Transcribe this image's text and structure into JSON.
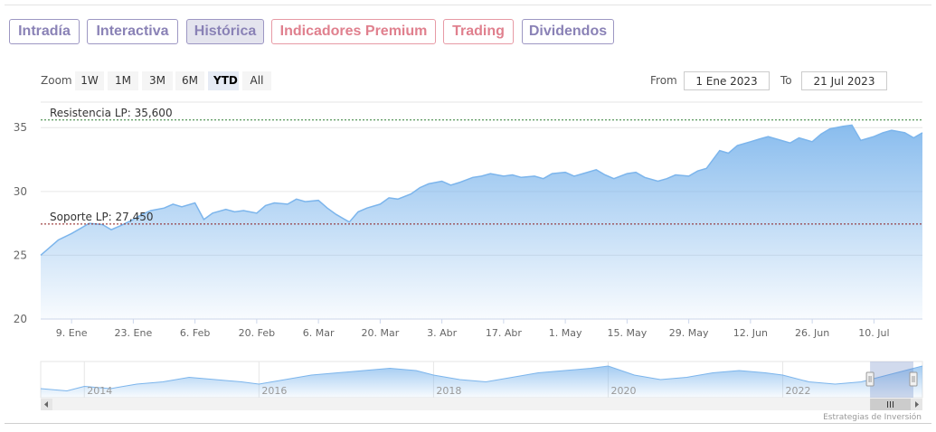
{
  "tabs": [
    {
      "label": "Intradía",
      "color": "#8a82b6",
      "active": false
    },
    {
      "label": "Interactiva",
      "color": "#8a82b6",
      "active": false
    },
    {
      "label": "Histórica",
      "color": "#8a82b6",
      "active": true
    },
    {
      "label": "Indicadores Premium",
      "color": "#e0808e",
      "active": false
    },
    {
      "label": "Trading",
      "color": "#e0808e",
      "active": false
    },
    {
      "label": "Dividendos",
      "color": "#8a82b6",
      "active": false
    }
  ],
  "zoom": {
    "label": "Zoom",
    "buttons": [
      "1W",
      "1M",
      "3M",
      "6M",
      "YTD",
      "All"
    ],
    "selected": "YTD"
  },
  "range": {
    "from_label": "From",
    "from_value": "1 Ene 2023",
    "to_label": "To",
    "to_value": "21 Jul 2023"
  },
  "credits": "Estrategias de Inversión",
  "colors": {
    "line": "#7cb5ec",
    "resistance": "#2e7d32",
    "support": "#8b1a1a"
  },
  "chart_data": {
    "type": "area",
    "ylim": [
      20,
      37
    ],
    "yticks": [
      20,
      25,
      30,
      35
    ],
    "xticks": [
      {
        "label": "9. Ene",
        "date": "2023-01-09"
      },
      {
        "label": "23. Ene",
        "date": "2023-01-23"
      },
      {
        "label": "6. Feb",
        "date": "2023-02-06"
      },
      {
        "label": "20. Feb",
        "date": "2023-02-20"
      },
      {
        "label": "6. Mar",
        "date": "2023-03-06"
      },
      {
        "label": "20. Mar",
        "date": "2023-03-20"
      },
      {
        "label": "3. Abr",
        "date": "2023-04-03"
      },
      {
        "label": "17. Abr",
        "date": "2023-04-17"
      },
      {
        "label": "1. May",
        "date": "2023-05-01"
      },
      {
        "label": "15. May",
        "date": "2023-05-15"
      },
      {
        "label": "29. May",
        "date": "2023-05-29"
      },
      {
        "label": "12. Jun",
        "date": "2023-06-12"
      },
      {
        "label": "26. Jun",
        "date": "2023-06-26"
      },
      {
        "label": "10. Jul",
        "date": "2023-07-10"
      }
    ],
    "x_range": [
      "2023-01-02",
      "2023-07-21"
    ],
    "series": [
      {
        "x": [
          "2023-01-02",
          "2023-01-04",
          "2023-01-06",
          "2023-01-09",
          "2023-01-11",
          "2023-01-13",
          "2023-01-16",
          "2023-01-18",
          "2023-01-20",
          "2023-01-23",
          "2023-01-25",
          "2023-01-27",
          "2023-01-30",
          "2023-02-01",
          "2023-02-03",
          "2023-02-06",
          "2023-02-08",
          "2023-02-10",
          "2023-02-13",
          "2023-02-15",
          "2023-02-17",
          "2023-02-20",
          "2023-02-22",
          "2023-02-24",
          "2023-02-27",
          "2023-03-01",
          "2023-03-03",
          "2023-03-06",
          "2023-03-08",
          "2023-03-10",
          "2023-03-13",
          "2023-03-15",
          "2023-03-17",
          "2023-03-20",
          "2023-03-22",
          "2023-03-24",
          "2023-03-27",
          "2023-03-29",
          "2023-03-31",
          "2023-04-03",
          "2023-04-05",
          "2023-04-07",
          "2023-04-10",
          "2023-04-12",
          "2023-04-14",
          "2023-04-17",
          "2023-04-19",
          "2023-04-21",
          "2023-04-24",
          "2023-04-26",
          "2023-04-28",
          "2023-05-01",
          "2023-05-03",
          "2023-05-05",
          "2023-05-08",
          "2023-05-10",
          "2023-05-12",
          "2023-05-15",
          "2023-05-17",
          "2023-05-19",
          "2023-05-22",
          "2023-05-24",
          "2023-05-26",
          "2023-05-29",
          "2023-05-31",
          "2023-06-02",
          "2023-06-05",
          "2023-06-07",
          "2023-06-09",
          "2023-06-12",
          "2023-06-14",
          "2023-06-16",
          "2023-06-19",
          "2023-06-21",
          "2023-06-23",
          "2023-06-26",
          "2023-06-28",
          "2023-06-30",
          "2023-07-03",
          "2023-07-05",
          "2023-07-07",
          "2023-07-10",
          "2023-07-12",
          "2023-07-14",
          "2023-07-17",
          "2023-07-19",
          "2023-07-21"
        ],
        "y": [
          25.0,
          25.6,
          26.2,
          26.7,
          27.1,
          27.5,
          27.4,
          27.0,
          27.3,
          27.8,
          28.2,
          28.5,
          28.7,
          29.0,
          28.8,
          29.1,
          27.8,
          28.3,
          28.6,
          28.4,
          28.5,
          28.3,
          28.9,
          29.1,
          29.0,
          29.4,
          29.2,
          29.3,
          28.7,
          28.2,
          27.6,
          28.4,
          28.7,
          29.0,
          29.5,
          29.4,
          29.8,
          30.3,
          30.6,
          30.8,
          30.5,
          30.7,
          31.1,
          31.2,
          31.4,
          31.2,
          31.3,
          31.1,
          31.2,
          31.0,
          31.4,
          31.5,
          31.2,
          31.4,
          31.7,
          31.3,
          31.0,
          31.4,
          31.5,
          31.1,
          30.8,
          31.0,
          31.3,
          31.2,
          31.6,
          31.8,
          33.2,
          33.0,
          33.6,
          33.9,
          34.1,
          34.3,
          34.0,
          33.8,
          34.2,
          33.9,
          34.5,
          34.9,
          35.1,
          35.2,
          34.0,
          34.3,
          34.6,
          34.8,
          34.6,
          34.2,
          34.6
        ]
      }
    ],
    "plot_lines": [
      {
        "label": "Resistencia LP: 35,600",
        "value": 35.6
      },
      {
        "label": "Soporte LP: 27,450",
        "value": 27.45
      }
    ],
    "navigator": {
      "xticks": [
        "2014",
        "2016",
        "2018",
        "2020",
        "2022"
      ],
      "x_range": [
        2013.5,
        2023.6
      ],
      "x": [
        2013.5,
        2013.8,
        2014.0,
        2014.3,
        2014.6,
        2014.9,
        2015.2,
        2015.5,
        2015.8,
        2016.0,
        2016.3,
        2016.6,
        2016.9,
        2017.2,
        2017.5,
        2017.8,
        2018.0,
        2018.3,
        2018.6,
        2018.9,
        2019.2,
        2019.5,
        2019.8,
        2020.0,
        2020.3,
        2020.6,
        2020.9,
        2021.2,
        2021.5,
        2021.8,
        2022.0,
        2022.3,
        2022.6,
        2022.9,
        2023.2,
        2023.6
      ],
      "y": [
        24,
        23,
        25,
        24,
        26,
        27,
        29,
        28,
        27,
        26,
        28,
        30,
        31,
        32,
        33,
        32,
        30,
        28,
        27,
        29,
        31,
        32,
        33,
        34,
        30,
        28,
        29,
        31,
        32,
        31,
        30,
        27,
        26,
        27,
        30,
        34
      ],
      "selection": [
        2023.0,
        2023.55
      ]
    }
  }
}
